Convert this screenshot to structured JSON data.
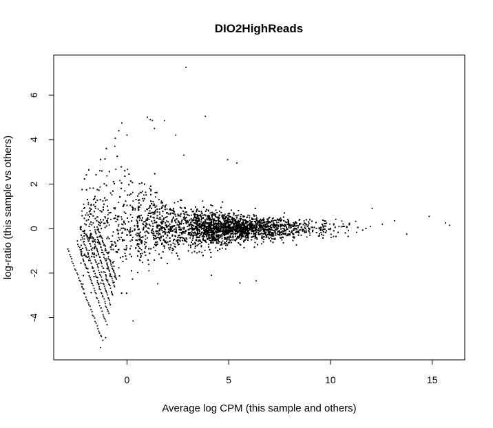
{
  "chart_data": {
    "type": "scatter",
    "title": "DIO2HighReads",
    "xlabel": "Average log CPM (this sample and others)",
    "ylabel": "log-ratio (this sample vs others)",
    "xlim": [
      -3.6,
      16.6
    ],
    "ylim": [
      -5.9,
      7.8
    ],
    "x_ticks": [
      0,
      5,
      10,
      15
    ],
    "y_ticks": [
      -4,
      -2,
      0,
      2,
      4,
      6
    ],
    "grid": false,
    "legend": "none",
    "point_color": "#000000",
    "series": [
      {
        "values": [
          [
            2.9,
            7.25
          ],
          [
            3.85,
            5.05
          ],
          [
            1.0,
            5.0
          ],
          [
            1.15,
            4.9
          ],
          [
            1.25,
            4.85
          ],
          [
            1.85,
            4.85
          ],
          [
            -0.25,
            4.75
          ],
          [
            1.35,
            4.5
          ],
          [
            -0.4,
            4.4
          ],
          [
            0.0,
            4.2
          ],
          [
            2.4,
            4.2
          ],
          [
            -0.6,
            3.7
          ],
          [
            2.8,
            3.3
          ],
          [
            4.95,
            3.1
          ],
          [
            5.4,
            2.95
          ],
          [
            12.05,
            0.9
          ],
          [
            14.85,
            0.55
          ],
          [
            15.65,
            0.25
          ],
          [
            15.85,
            0.15
          ],
          [
            13.15,
            0.35
          ],
          [
            12.55,
            0.2
          ],
          [
            13.75,
            -0.25
          ],
          [
            0.3,
            -4.15
          ],
          [
            -1.05,
            -4.9
          ],
          [
            -1.3,
            -5.35
          ],
          [
            4.15,
            -2.1
          ],
          [
            5.55,
            -2.45
          ],
          [
            6.35,
            -2.35
          ]
        ]
      }
    ],
    "bands": {
      "description": "Low-count lines of points fanning from lower-left",
      "lines": [
        {
          "x0": -2.9,
          "y0": -0.95,
          "x1": -1.2,
          "y1": -5.0
        },
        {
          "x0": -2.45,
          "y0": -0.6,
          "x1": -1.0,
          "y1": -4.3
        },
        {
          "x0": -2.2,
          "y0": -0.4,
          "x1": -0.9,
          "y1": -3.8
        },
        {
          "x0": -2.0,
          "y0": -0.25,
          "x1": -0.8,
          "y1": -3.4
        },
        {
          "x0": -1.8,
          "y0": -0.1,
          "x1": -0.7,
          "y1": -3.0
        },
        {
          "x0": -1.6,
          "y0": 0.0,
          "x1": -0.6,
          "y1": -2.6
        },
        {
          "x0": -1.45,
          "y0": 0.1,
          "x1": -0.5,
          "y1": -2.3
        }
      ]
    },
    "cloud": {
      "description": "Main dense cloud of log-ratio points centered near y=0",
      "x_range": [
        -2.5,
        12.0
      ],
      "center_x": 5.0,
      "center_y": 0.0
    }
  }
}
